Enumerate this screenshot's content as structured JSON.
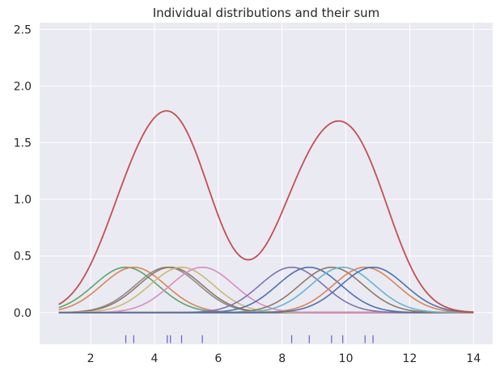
{
  "chart_data": {
    "type": "line",
    "title": "Individual distributions and their sum",
    "xlabel": "",
    "ylabel": "",
    "xlim": [
      0.4,
      14.6
    ],
    "ylim": [
      -0.28,
      2.56
    ],
    "x_range": [
      1,
      14
    ],
    "x_ticks": [
      2,
      4,
      6,
      8,
      10,
      12,
      14
    ],
    "y_ticks": [
      0.0,
      0.5,
      1.0,
      1.5,
      2.0,
      2.5
    ],
    "x_tick_labels": [
      "2",
      "4",
      "6",
      "8",
      "10",
      "12",
      "14"
    ],
    "y_tick_labels": [
      "0.0",
      "0.5",
      "1.0",
      "1.5",
      "2.0",
      "2.5"
    ],
    "grid": true,
    "background": "#eaeaf2",
    "grid_color": "#ffffff",
    "kernel": {
      "shape": "gaussian",
      "peak": 0.4,
      "sigma": 1.0
    },
    "data_points": [
      3.1,
      3.35,
      4.4,
      4.5,
      4.85,
      5.5,
      8.3,
      8.85,
      9.55,
      9.9,
      10.6,
      10.85
    ],
    "series": [
      {
        "center": 3.1,
        "color": "#55a868"
      },
      {
        "center": 3.35,
        "color": "#dd8452"
      },
      {
        "center": 4.4,
        "color": "#8c8c8c"
      },
      {
        "center": 4.5,
        "color": "#937860"
      },
      {
        "center": 4.85,
        "color": "#ccb974"
      },
      {
        "center": 5.5,
        "color": "#da8bc3"
      },
      {
        "center": 8.3,
        "color": "#8172b3"
      },
      {
        "center": 8.85,
        "color": "#4c72b0"
      },
      {
        "center": 9.55,
        "color": "#937860"
      },
      {
        "center": 9.9,
        "color": "#64b5cd"
      },
      {
        "center": 10.6,
        "color": "#dd8452"
      },
      {
        "center": 10.85,
        "color": "#4c72b0"
      }
    ],
    "sum_series": {
      "color": "#c44e52"
    },
    "baseline_color": "#937860",
    "rug_color": "#6a5acd",
    "rug_y": [
      -0.27,
      -0.2
    ]
  }
}
